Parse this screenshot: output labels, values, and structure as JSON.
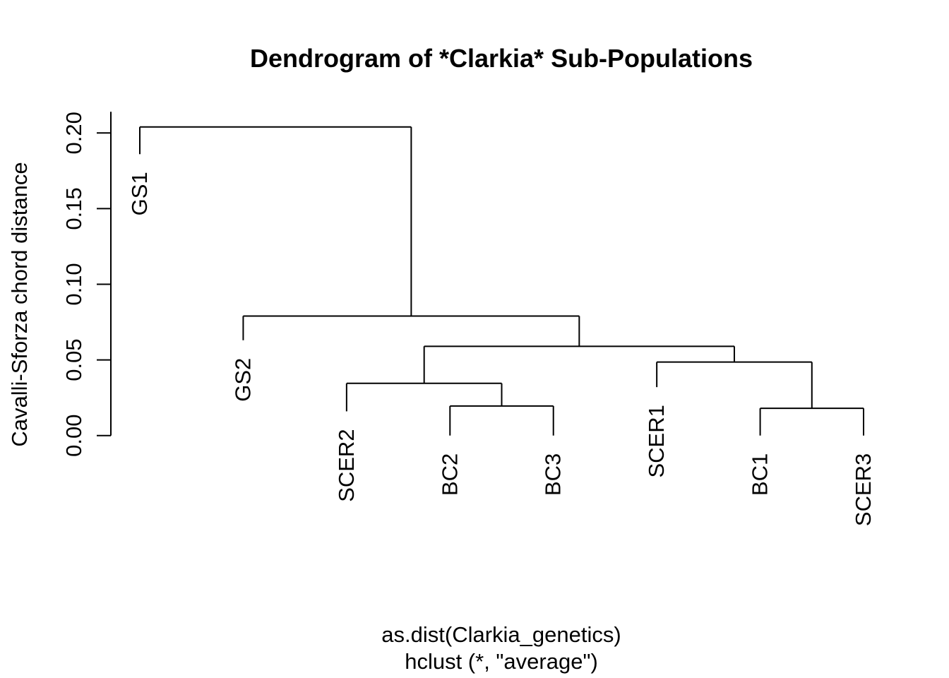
{
  "figure": {
    "background": "#ffffff",
    "line_color": "#000000",
    "text_color": "#000000"
  },
  "chart_data": {
    "type": "dendrogram",
    "title": "Dendrogram of *Clarkia* Sub-Populations",
    "ylabel": "Cavalli-Sforza chord distance",
    "caption_lines": [
      "as.dist(Clarkia_genetics)",
      "hclust (*, \"average\")"
    ],
    "yticks": [
      0.0,
      0.05,
      0.1,
      0.15,
      0.2
    ],
    "ylim": [
      0,
      0.214
    ],
    "grid": false,
    "legend": false,
    "leaf_order": [
      "GS1",
      "GS2",
      "SCER2",
      "BC2",
      "BC3",
      "SCER1",
      "BC1",
      "SCER3"
    ],
    "merges": [
      {
        "join": [
          "BC1",
          "SCER3"
        ],
        "height": 0.018
      },
      {
        "join": [
          "BC2",
          "BC3"
        ],
        "height": 0.0195
      },
      {
        "join": [
          "SCER2",
          "(BC2,BC3)"
        ],
        "height": 0.0345
      },
      {
        "join": [
          "SCER1",
          "(BC1,SCER3)"
        ],
        "height": 0.0486
      },
      {
        "join": [
          "(SCER2,(BC2,BC3))",
          "(SCER1,(BC1,SCER3))"
        ],
        "height": 0.059
      },
      {
        "join": [
          "GS2",
          "(SCER2,BC2,BC3,SCER1,BC1,SCER3)"
        ],
        "height": 0.079
      },
      {
        "join": [
          "GS1",
          "(all other sub-populations)"
        ],
        "height": 0.204
      }
    ],
    "tree": {
      "height": 0.204,
      "children": [
        {
          "leaf": "GS1",
          "tip": 0.186
        },
        {
          "height": 0.079,
          "children": [
            {
              "leaf": "GS2",
              "tip": 0.063
            },
            {
              "height": 0.059,
              "children": [
                {
                  "height": 0.0345,
                  "children": [
                    {
                      "leaf": "SCER2",
                      "tip": 0.016
                    },
                    {
                      "height": 0.0195,
                      "children": [
                        {
                          "leaf": "BC2",
                          "tip": 0.0
                        },
                        {
                          "leaf": "BC3",
                          "tip": 0.0
                        }
                      ]
                    }
                  ]
                },
                {
                  "height": 0.0486,
                  "children": [
                    {
                      "leaf": "SCER1",
                      "tip": 0.032
                    },
                    {
                      "height": 0.018,
                      "children": [
                        {
                          "leaf": "BC1",
                          "tip": 0.0
                        },
                        {
                          "leaf": "SCER3",
                          "tip": 0.0
                        }
                      ]
                    }
                  ]
                }
              ]
            }
          ]
        }
      ]
    }
  }
}
